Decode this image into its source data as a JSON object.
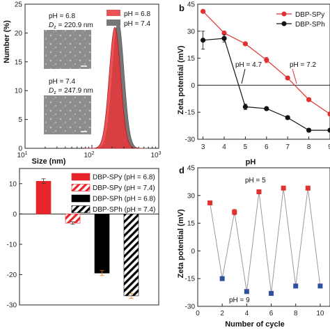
{
  "chart_data": [
    {
      "id": "a",
      "panel_label": "",
      "type": "area",
      "xlabel": "Size (nm)",
      "ylabel": "Number (%)",
      "xscale": "log",
      "xlim": [
        10,
        1000
      ],
      "ylim": [
        0,
        25
      ],
      "x_ticks": [
        "10^1",
        "10^2",
        "10^3"
      ],
      "y_ticks": [
        "0",
        "5",
        "10",
        "15",
        "20",
        "25"
      ],
      "legend": [
        "pH = 6.8",
        "pH = 7.4"
      ],
      "legend_position": "top-right",
      "series": [
        {
          "name": "pH = 6.8",
          "color": "#e8353a",
          "peak_x": 220.9,
          "peak_y": 21,
          "width": 0.085
        },
        {
          "name": "pH = 7.4",
          "color": "#777777",
          "peak_x": 247.9,
          "peak_y": 22,
          "width": 0.085
        }
      ],
      "insets": [
        {
          "ph_label": "pH = 6.8",
          "dz_prefix": "D",
          "dz_sub": "z",
          "dz_value": " = 220.9 nm"
        },
        {
          "ph_label": "pH = 7.4",
          "dz_prefix": "D",
          "dz_sub": "z",
          "dz_value": " = 247.9 nm"
        }
      ]
    },
    {
      "id": "b",
      "panel_label": "b",
      "type": "line",
      "xlabel": "pH",
      "ylabel": "Zeta potential (mV)",
      "xlim": [
        2.75,
        9.0
      ],
      "ylim": [
        -30,
        45
      ],
      "x_ticks": [
        3,
        4,
        5,
        6,
        7,
        8,
        9
      ],
      "y_ticks": [
        -30,
        -15,
        0,
        15,
        30,
        45
      ],
      "legend": [
        "DBP-SPy",
        "DBP-SPh"
      ],
      "legend_position": "top-right",
      "series": [
        {
          "name": "DBP-SPy",
          "color": "#e23030",
          "marker": "circle",
          "x": [
            3,
            4,
            5,
            6,
            7,
            8,
            9
          ],
          "y": [
            41,
            29,
            23,
            14,
            4,
            -8,
            -16
          ],
          "err": [
            0,
            0.5,
            0.5,
            1.5,
            1,
            1,
            1
          ]
        },
        {
          "name": "DBP-SPh",
          "color": "#111111",
          "marker": "circle",
          "x": [
            3,
            4,
            5,
            6,
            7,
            8,
            9
          ],
          "y": [
            25,
            26,
            -12,
            -13,
            -18,
            -25,
            -25
          ],
          "err": [
            5,
            2,
            1.5,
            0.5,
            1,
            1,
            1
          ]
        }
      ],
      "annotations": [
        {
          "text": "pH = 4.7",
          "color": "#111111",
          "x": 4.7
        },
        {
          "text": "pH = 7.2",
          "color": "#e23030",
          "x": 7.2
        }
      ]
    },
    {
      "id": "c",
      "panel_label": "",
      "type": "bar",
      "ylim": [
        -30,
        15
      ],
      "y_ticks": [
        -30,
        -20,
        -10,
        0,
        10
      ],
      "legend_position": "top-right",
      "series": [
        {
          "name": "DBP-SPy (pH = 6.8)",
          "value": 10.8,
          "err": 0.8,
          "color": "#e8252a",
          "pattern": "solid"
        },
        {
          "name": "DBP-SPy (pH = 7.4)",
          "value": -3,
          "err": 0.4,
          "color": "#e8252a",
          "pattern": "hatch"
        },
        {
          "name": "DBP-SPh (pH = 6.8)",
          "value": -19.5,
          "err": 0.8,
          "color": "#000000",
          "pattern": "solid"
        },
        {
          "name": "DBP-SPh (pH = 7.4)",
          "value": -27,
          "err": 0.8,
          "color": "#000000",
          "pattern": "hatch"
        }
      ]
    },
    {
      "id": "d",
      "panel_label": "d",
      "type": "line",
      "xlabel": "Number of cycle",
      "ylabel": "Zeta potential (mV)",
      "xlim": [
        0,
        10.8
      ],
      "ylim": [
        -30,
        45
      ],
      "x_ticks": [
        0,
        2,
        4,
        6,
        8,
        10
      ],
      "y_ticks": [
        -30,
        -15,
        0,
        15,
        30,
        45
      ],
      "series": [
        {
          "name": "",
          "color": "#999999",
          "x": [
            1,
            2,
            3,
            4,
            5,
            6,
            7,
            8,
            9,
            10
          ],
          "y": [
            26,
            -15,
            21,
            -22,
            32,
            -23,
            34,
            -19,
            34,
            -19
          ],
          "err": [
            0,
            1,
            1.5,
            1,
            0,
            0,
            0,
            0,
            0,
            0
          ],
          "point_colors": [
            "#e03030",
            "#2f4f9f",
            "#e03030",
            "#2f4f9f",
            "#e03030",
            "#2f4f9f",
            "#e03030",
            "#2f4f9f",
            "#e03030",
            "#2f4f9f"
          ]
        }
      ],
      "annotations": [
        {
          "text": "pH = 5",
          "color": "#e03030"
        },
        {
          "text": "pH = 9",
          "color": "#2f4f9f"
        }
      ]
    }
  ]
}
